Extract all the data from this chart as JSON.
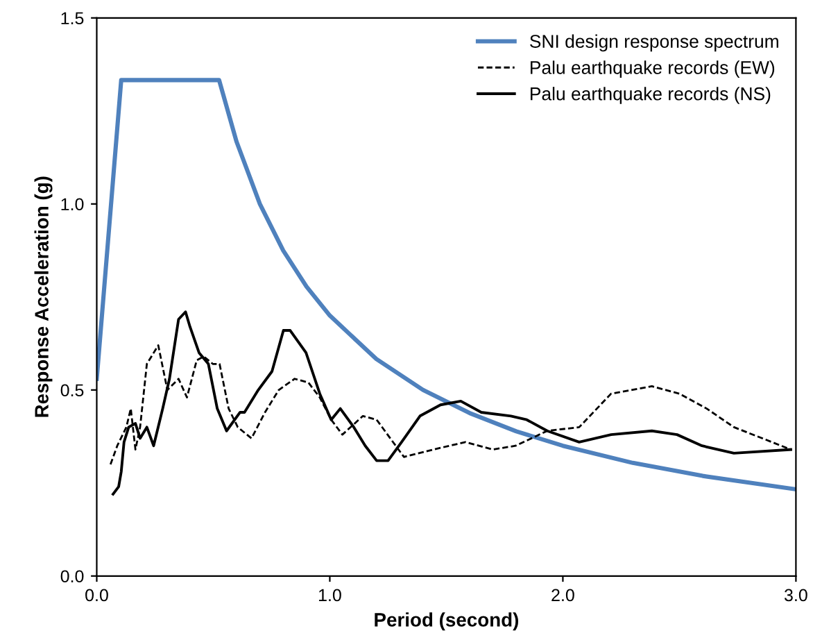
{
  "chart_data": {
    "type": "line",
    "xlabel": "Period (second)",
    "ylabel": "Response Acceleration (g)",
    "xlim": [
      0,
      3.0
    ],
    "ylim": [
      0,
      1.5
    ],
    "xticks": [
      {
        "value": 0,
        "label": "0.0"
      },
      {
        "value": 1,
        "label": "1.0"
      },
      {
        "value": 2,
        "label": "2.0"
      },
      {
        "value": 3,
        "label": "3.0"
      }
    ],
    "yticks": [
      {
        "value": 0,
        "label": "0.0"
      },
      {
        "value": 0.5,
        "label": "0.5"
      },
      {
        "value": 1,
        "label": "1.0"
      },
      {
        "value": 1.5,
        "label": "1.5"
      }
    ],
    "grid": false,
    "legend": "top right",
    "marker": "none",
    "series": [
      {
        "name": "SNI design response spectrum",
        "color": "#4f81bd",
        "line_style": "solid",
        "x": [
          0,
          0.105,
          0.525,
          0.6,
          0.7,
          0.8,
          0.9,
          1.0,
          1.2,
          1.4,
          1.6,
          1.8,
          2.0,
          2.3,
          2.6,
          3.0
        ],
        "values": [
          0.53,
          1.333,
          1.333,
          1.167,
          1.0,
          0.875,
          0.778,
          0.7,
          0.583,
          0.5,
          0.438,
          0.389,
          0.35,
          0.304,
          0.269,
          0.233
        ]
      },
      {
        "name": "Palu earthquake records (EW)",
        "color": "#000000",
        "line_style": "dashed",
        "x": [
          0.059,
          0.088,
          0.127,
          0.146,
          0.166,
          0.186,
          0.215,
          0.264,
          0.303,
          0.351,
          0.387,
          0.429,
          0.459,
          0.498,
          0.527,
          0.566,
          0.605,
          0.664,
          0.722,
          0.781,
          0.849,
          0.908,
          0.957,
          1.006,
          1.054,
          1.142,
          1.201,
          1.318,
          1.445,
          1.582,
          1.699,
          1.797,
          1.933,
          2.07,
          2.207,
          2.382,
          2.5,
          2.617,
          2.734,
          2.978
        ],
        "values": [
          0.3,
          0.35,
          0.4,
          0.45,
          0.34,
          0.4,
          0.57,
          0.62,
          0.5,
          0.53,
          0.48,
          0.58,
          0.59,
          0.57,
          0.57,
          0.45,
          0.4,
          0.37,
          0.44,
          0.5,
          0.53,
          0.52,
          0.48,
          0.42,
          0.38,
          0.43,
          0.42,
          0.32,
          0.34,
          0.36,
          0.34,
          0.35,
          0.39,
          0.4,
          0.49,
          0.51,
          0.49,
          0.45,
          0.4,
          0.34
        ]
      },
      {
        "name": "Palu earthquake records (NS)",
        "color": "#000000",
        "line_style": "solid",
        "x": [
          0.07,
          0.094,
          0.105,
          0.117,
          0.137,
          0.166,
          0.186,
          0.215,
          0.244,
          0.283,
          0.312,
          0.351,
          0.381,
          0.4,
          0.439,
          0.479,
          0.517,
          0.557,
          0.615,
          0.634,
          0.693,
          0.752,
          0.801,
          0.83,
          0.898,
          0.957,
          1.006,
          1.045,
          1.103,
          1.152,
          1.201,
          1.25,
          1.308,
          1.387,
          1.475,
          1.562,
          1.65,
          1.777,
          1.845,
          1.933,
          2.07,
          2.207,
          2.382,
          2.49,
          2.597,
          2.734,
          2.978
        ],
        "values": [
          0.22,
          0.24,
          0.28,
          0.36,
          0.4,
          0.41,
          0.37,
          0.4,
          0.35,
          0.45,
          0.53,
          0.69,
          0.71,
          0.67,
          0.6,
          0.57,
          0.45,
          0.39,
          0.44,
          0.44,
          0.5,
          0.55,
          0.66,
          0.66,
          0.6,
          0.49,
          0.42,
          0.45,
          0.4,
          0.35,
          0.31,
          0.31,
          0.36,
          0.43,
          0.46,
          0.47,
          0.44,
          0.43,
          0.42,
          0.39,
          0.36,
          0.38,
          0.39,
          0.38,
          0.35,
          0.33,
          0.34
        ]
      }
    ]
  }
}
